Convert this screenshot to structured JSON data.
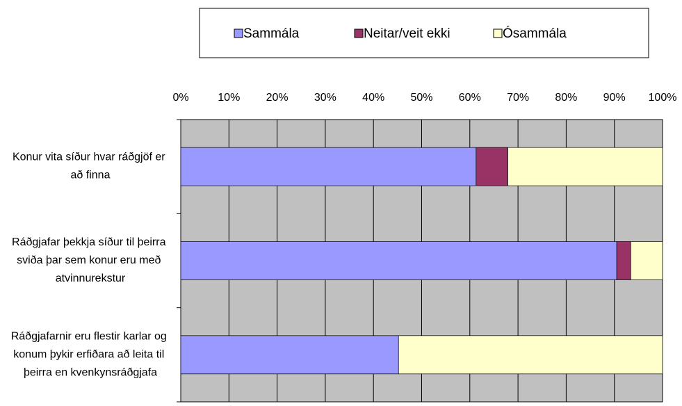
{
  "chart_data": {
    "type": "stacked_bar_horizontal",
    "categories": [
      "Konur vita síður hvar ráðgjöf er að finna",
      "Ráðgjafar þekkja síður til þeirra sviða þar sem konur eru með atvinnurekstur",
      "Ráðgjafarnir eru flestir karlar og konum þykir erfiðara að leita til þeirra en kvenkynsráðgjafa"
    ],
    "series": [
      {
        "name": "Sammála",
        "color": "#9999ff",
        "values": [
          61.3,
          90.5,
          45.2
        ]
      },
      {
        "name": "Neitar/veit ekki",
        "color": "#993366",
        "values": [
          6.6,
          2.9,
          0
        ]
      },
      {
        "name": "Ósammála",
        "color": "#ffffcc",
        "values": [
          32.1,
          6.6,
          54.8
        ]
      }
    ],
    "xlim": [
      0,
      100
    ],
    "xticks": [
      {
        "value": 0,
        "label": "0%"
      },
      {
        "value": 10,
        "label": "10%"
      },
      {
        "value": 20,
        "label": "20%"
      },
      {
        "value": 30,
        "label": "30%"
      },
      {
        "value": 40,
        "label": "40%"
      },
      {
        "value": 50,
        "label": "50%"
      },
      {
        "value": 60,
        "label": "60%"
      },
      {
        "value": 70,
        "label": "70%"
      },
      {
        "value": 80,
        "label": "80%"
      },
      {
        "value": 90,
        "label": "90%"
      },
      {
        "value": 100,
        "label": "100%"
      }
    ],
    "grid": true,
    "legend": "top",
    "plot_background": "#c0c0c0"
  }
}
